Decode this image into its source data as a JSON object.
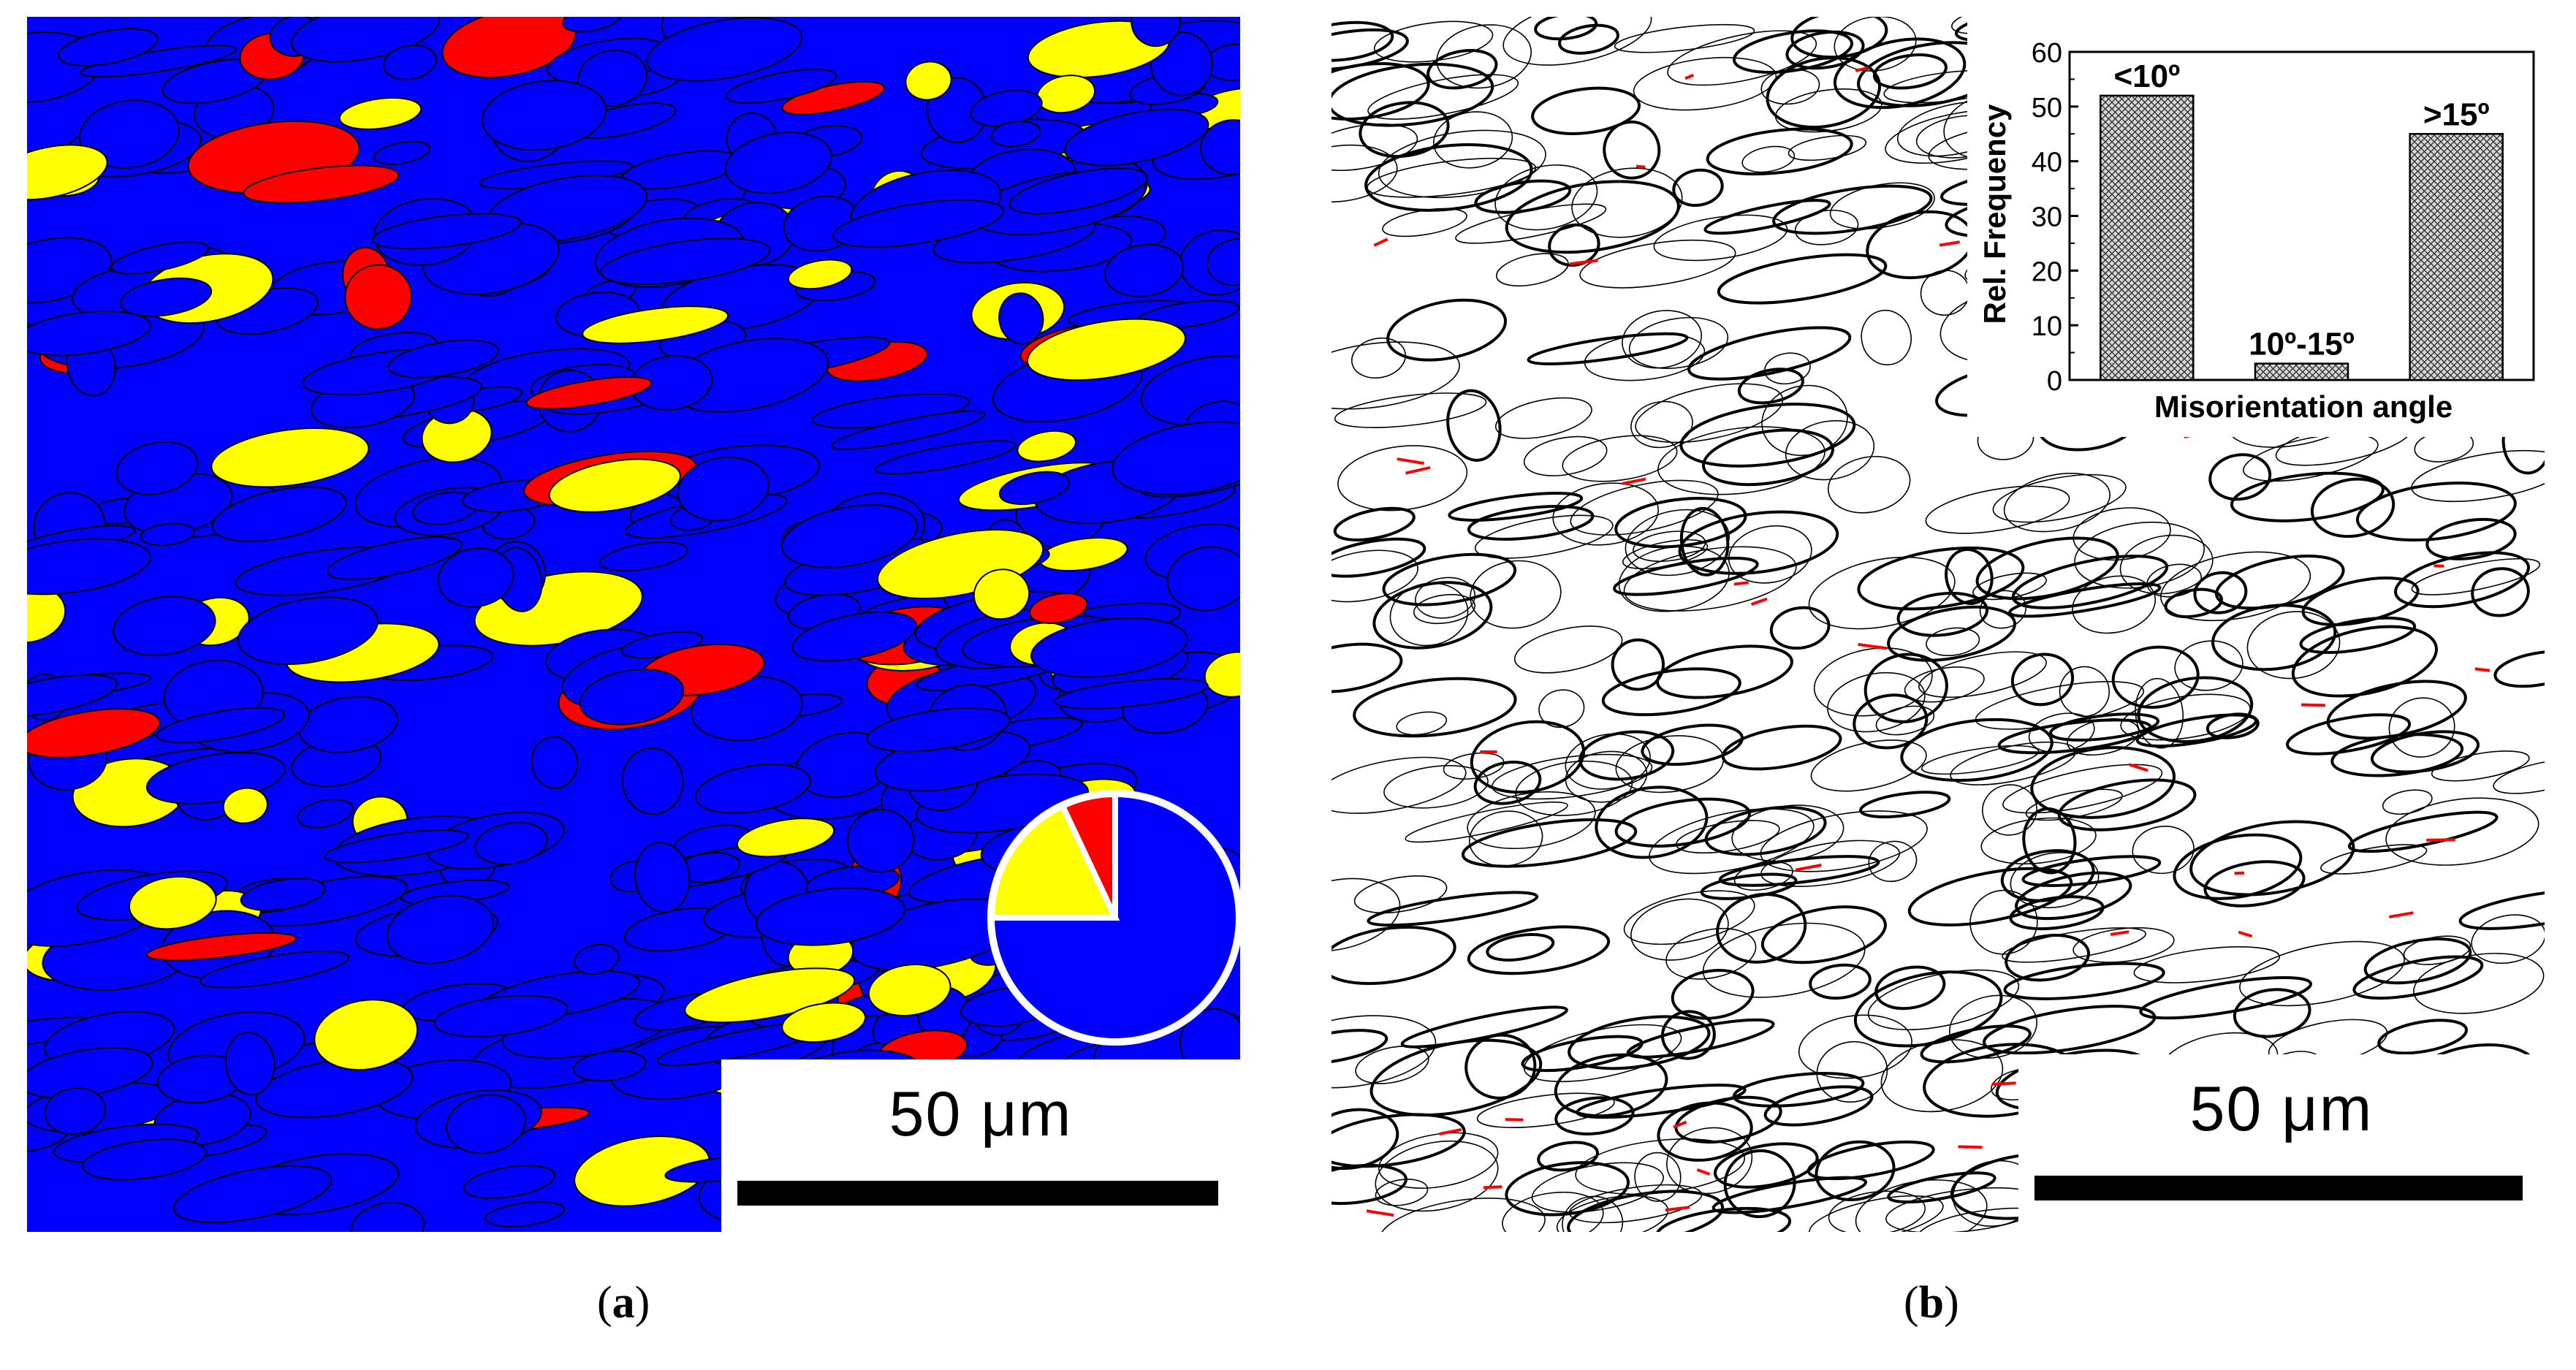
{
  "colors": {
    "phase_major": "#0000ff",
    "phase_second": "#ffff00",
    "phase_third": "#ff0000",
    "boundary": "#000000",
    "low_angle_boundary": "#ff0000"
  },
  "panel_a": {
    "caption_letter": "a",
    "scale_bar_label": "50  μm",
    "chart_data": {
      "type": "pie",
      "title": "",
      "slices": [
        {
          "label": "",
          "value": 75,
          "color": "#0000ff"
        },
        {
          "label": "",
          "value": 18,
          "color": "#ffff00"
        },
        {
          "label": "",
          "value": 7,
          "color": "#ff0000"
        }
      ],
      "legend": "none"
    }
  },
  "panel_b": {
    "caption_letter": "b",
    "scale_bar_label": "50  μm",
    "chart_data": {
      "type": "bar",
      "categories": [
        "<10º",
        "10º-15º",
        ">15º"
      ],
      "values": [
        52,
        3,
        45
      ],
      "xlabel": "Misorientation angle",
      "ylabel": "Rel. Frequency",
      "ylim": [
        0,
        60
      ],
      "yticks": [
        "0",
        "10",
        "20",
        "30",
        "40",
        "50",
        "60"
      ],
      "grid": false,
      "bar_fill": "cross-hatched"
    }
  }
}
